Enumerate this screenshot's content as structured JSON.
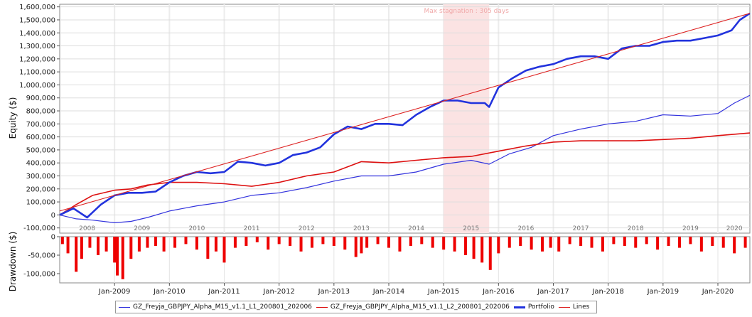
{
  "colors": {
    "l1": "#3333dd",
    "l2": "#dd1111",
    "portfolio": "#2233dd",
    "lines": "#dd2222",
    "drawdown": "#ee0000",
    "stagnation": "#fbe3e3",
    "grid": "#dddddd",
    "year_band": "#ececec"
  },
  "chart_data": [
    {
      "type": "line",
      "ylabel": "Equity ($)",
      "ylim": [
        -140000,
        1620000
      ],
      "yticks": [
        "1,600,000",
        "1,500,000",
        "1,400,000",
        "1,300,000",
        "1,200,000",
        "1,100,000",
        "1,000,000",
        "900,000",
        "800,000",
        "700,000",
        "600,000",
        "500,000",
        "400,000",
        "300,000",
        "200,000",
        "100,000",
        "0",
        "-100,000"
      ],
      "ytick_values": [
        1600000,
        1500000,
        1400000,
        1300000,
        1200000,
        1100000,
        1000000,
        900000,
        800000,
        700000,
        600000,
        500000,
        400000,
        300000,
        200000,
        100000,
        0,
        -100000
      ],
      "xlim": [
        2008.0,
        2020.583
      ],
      "year_labels": [
        "2008",
        "2009",
        "2010",
        "2011",
        "2012",
        "2013",
        "2014",
        "2015",
        "2016",
        "2017",
        "2018",
        "2019",
        "2020"
      ],
      "annotation": "Max stagnation : 305 days",
      "stagnation_range": [
        2015.0,
        2015.83
      ],
      "series": [
        {
          "name": "GZ_Freyja_GBPJPY_Alpha_M15_v1.1_L1_200801_202006",
          "x": [
            2008.0,
            2008.3,
            2008.6,
            2009.0,
            2009.3,
            2009.6,
            2010.0,
            2010.5,
            2011.0,
            2011.5,
            2012.0,
            2012.5,
            2013.0,
            2013.5,
            2014.0,
            2014.5,
            2015.0,
            2015.5,
            2015.83,
            2016.2,
            2016.6,
            2017.0,
            2017.5,
            2018.0,
            2018.5,
            2019.0,
            2019.5,
            2020.0,
            2020.3,
            2020.583
          ],
          "y": [
            0,
            -30000,
            -40000,
            -60000,
            -50000,
            -20000,
            30000,
            70000,
            100000,
            150000,
            170000,
            210000,
            260000,
            300000,
            300000,
            330000,
            390000,
            420000,
            390000,
            470000,
            520000,
            610000,
            660000,
            700000,
            720000,
            770000,
            760000,
            780000,
            860000,
            920000
          ]
        },
        {
          "name": "GZ_Freyja_GBPJPY_Alpha_M15_v1.1_L2_200801_202006",
          "x": [
            2008.0,
            2008.3,
            2008.6,
            2009.0,
            2009.3,
            2009.6,
            2010.0,
            2010.5,
            2011.0,
            2011.5,
            2012.0,
            2012.5,
            2013.0,
            2013.5,
            2014.0,
            2014.5,
            2015.0,
            2015.5,
            2016.0,
            2016.5,
            2017.0,
            2017.5,
            2018.0,
            2018.5,
            2019.0,
            2019.5,
            2020.0,
            2020.583
          ],
          "y": [
            0,
            80000,
            150000,
            190000,
            200000,
            230000,
            250000,
            250000,
            240000,
            220000,
            250000,
            300000,
            330000,
            410000,
            400000,
            420000,
            440000,
            450000,
            490000,
            530000,
            560000,
            570000,
            570000,
            570000,
            580000,
            590000,
            610000,
            630000
          ]
        },
        {
          "name": "Portfolio",
          "x": [
            2008.0,
            2008.25,
            2008.5,
            2008.75,
            2009.0,
            2009.25,
            2009.5,
            2009.75,
            2010.0,
            2010.25,
            2010.5,
            2010.75,
            2011.0,
            2011.25,
            2011.5,
            2011.75,
            2012.0,
            2012.25,
            2012.5,
            2012.75,
            2013.0,
            2013.25,
            2013.5,
            2013.75,
            2014.0,
            2014.25,
            2014.5,
            2014.75,
            2015.0,
            2015.25,
            2015.5,
            2015.75,
            2015.83,
            2016.0,
            2016.25,
            2016.5,
            2016.75,
            2017.0,
            2017.25,
            2017.5,
            2017.75,
            2018.0,
            2018.25,
            2018.5,
            2018.75,
            2019.0,
            2019.25,
            2019.5,
            2019.75,
            2020.0,
            2020.25,
            2020.4,
            2020.583
          ],
          "y": [
            0,
            50000,
            -20000,
            80000,
            150000,
            170000,
            170000,
            180000,
            250000,
            300000,
            330000,
            320000,
            330000,
            410000,
            400000,
            380000,
            400000,
            460000,
            480000,
            520000,
            620000,
            680000,
            660000,
            700000,
            700000,
            690000,
            770000,
            830000,
            880000,
            880000,
            860000,
            860000,
            830000,
            980000,
            1050000,
            1110000,
            1140000,
            1160000,
            1200000,
            1220000,
            1220000,
            1200000,
            1280000,
            1300000,
            1300000,
            1330000,
            1340000,
            1340000,
            1360000,
            1380000,
            1420000,
            1500000,
            1550000
          ]
        },
        {
          "name": "Lines",
          "x": [
            2008.0,
            2020.583
          ],
          "y": [
            30000,
            1550000
          ]
        }
      ]
    },
    {
      "type": "bar",
      "ylabel": "Drawdown ($)",
      "ylim": [
        -125000,
        0
      ],
      "yticks": [
        "0",
        "-50,000",
        "-100,000"
      ],
      "ytick_values": [
        0,
        -50000,
        -100000
      ],
      "xlim": [
        2008.0,
        2020.583
      ],
      "xticks": [
        "Jan-2009",
        "Jan-2010",
        "Jan-2011",
        "Jan-2012",
        "Jan-2013",
        "Jan-2014",
        "Jan-2015",
        "Jan-2016",
        "Jan-2017",
        "Jan-2018",
        "Jan-2019",
        "Jan-2020"
      ],
      "xtick_values": [
        2009,
        2010,
        2011,
        2012,
        2013,
        2014,
        2015,
        2016,
        2017,
        2018,
        2019,
        2020
      ],
      "series": [
        {
          "name": "Drawdown",
          "x": [
            2008.05,
            2008.15,
            2008.3,
            2008.4,
            2008.55,
            2008.7,
            2008.85,
            2009.0,
            2009.05,
            2009.15,
            2009.3,
            2009.45,
            2009.6,
            2009.75,
            2009.9,
            2010.1,
            2010.3,
            2010.5,
            2010.7,
            2010.85,
            2011.0,
            2011.2,
            2011.4,
            2011.6,
            2011.8,
            2012.0,
            2012.2,
            2012.4,
            2012.6,
            2012.8,
            2013.0,
            2013.2,
            2013.4,
            2013.5,
            2013.6,
            2013.8,
            2014.0,
            2014.2,
            2014.4,
            2014.6,
            2014.8,
            2015.0,
            2015.2,
            2015.4,
            2015.55,
            2015.7,
            2015.85,
            2016.0,
            2016.2,
            2016.4,
            2016.6,
            2016.8,
            2016.95,
            2017.1,
            2017.3,
            2017.5,
            2017.7,
            2017.9,
            2018.1,
            2018.3,
            2018.5,
            2018.7,
            2018.9,
            2019.1,
            2019.3,
            2019.5,
            2019.7,
            2019.9,
            2020.1,
            2020.3,
            2020.5
          ],
          "y": [
            -20000,
            -45000,
            -95000,
            -60000,
            -30000,
            -50000,
            -40000,
            -70000,
            -105000,
            -115000,
            -60000,
            -40000,
            -30000,
            -25000,
            -40000,
            -30000,
            -20000,
            -35000,
            -60000,
            -40000,
            -70000,
            -30000,
            -25000,
            -15000,
            -35000,
            -20000,
            -25000,
            -40000,
            -30000,
            -20000,
            -25000,
            -35000,
            -55000,
            -45000,
            -30000,
            -20000,
            -30000,
            -40000,
            -25000,
            -20000,
            -30000,
            -35000,
            -40000,
            -50000,
            -60000,
            -70000,
            -90000,
            -45000,
            -30000,
            -25000,
            -35000,
            -40000,
            -30000,
            -40000,
            -20000,
            -25000,
            -30000,
            -40000,
            -20000,
            -25000,
            -30000,
            -20000,
            -35000,
            -25000,
            -30000,
            -20000,
            -40000,
            -25000,
            -30000,
            -45000,
            -30000
          ]
        }
      ]
    }
  ],
  "legend": [
    {
      "label": "GZ_Freyja_GBPJPY_Alpha_M15_v1.1_L1_200801_202006",
      "color": "#3333dd",
      "width": 1
    },
    {
      "label": "GZ_Freyja_GBPJPY_Alpha_M15_v1.1_L2_200801_202006",
      "color": "#dd1111",
      "width": 1
    },
    {
      "label": "Portfolio",
      "color": "#2233dd",
      "width": 3
    },
    {
      "label": "Lines",
      "color": "#dd2222",
      "width": 1
    }
  ]
}
